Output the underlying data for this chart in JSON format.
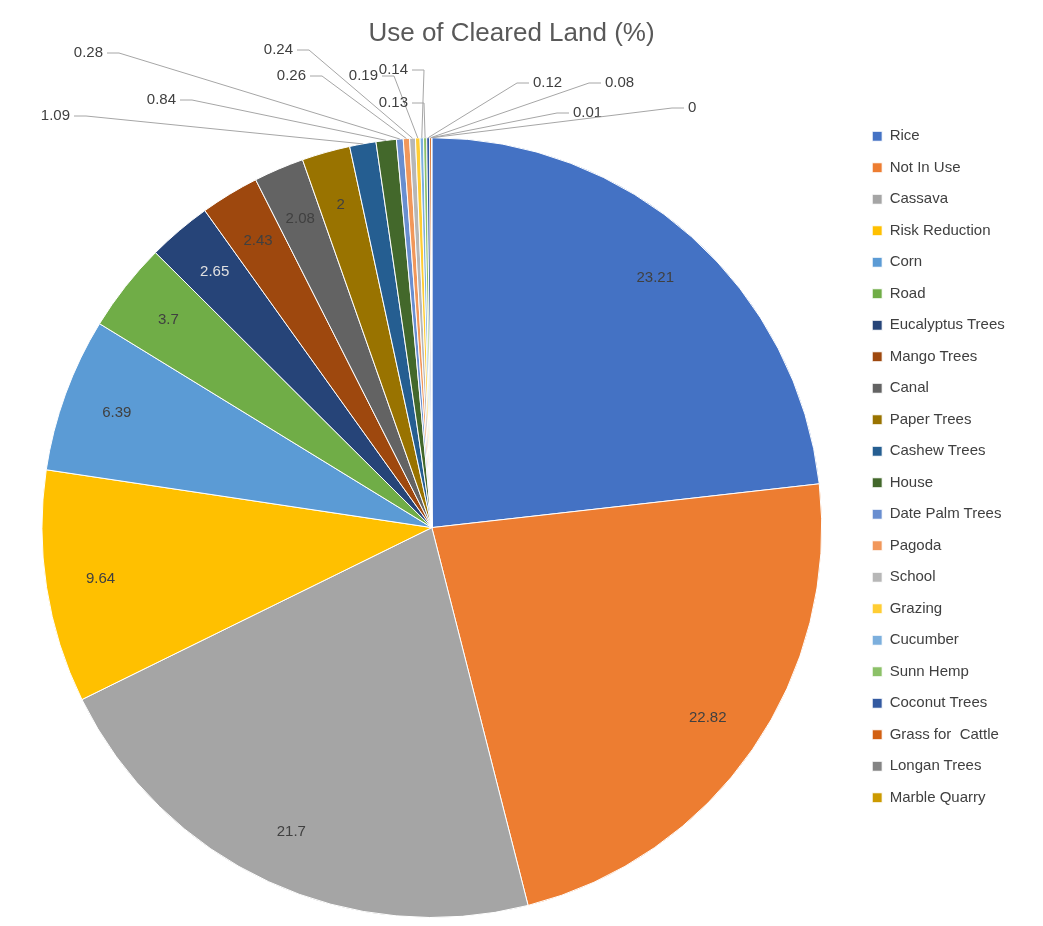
{
  "chart_data": {
    "type": "pie",
    "title": "Use of Cleared Land (%)",
    "categories": [
      "Rice",
      "Not In Use",
      "Cassava",
      "Risk Reduction",
      "Corn",
      "Road",
      "Eucalyptus Trees",
      "Mango Trees",
      "Canal",
      "Paper Trees",
      "Cashew Trees",
      "House",
      "Date Palm Trees",
      "Pagoda",
      "School",
      "Grazing",
      "Cucumber",
      "Sunn Hemp",
      "Coconut Trees",
      "Grass for  Cattle",
      "Longan Trees",
      "Marble Quarry"
    ],
    "values": [
      23.21,
      22.82,
      21.7,
      9.64,
      6.39,
      3.7,
      2.65,
      2.43,
      2.08,
      2,
      1.09,
      0.84,
      0.28,
      0.26,
      0.24,
      0.19,
      0.14,
      0.13,
      0.12,
      0.08,
      0.01,
      0
    ],
    "colors": [
      "#4472c4",
      "#ed7d31",
      "#a5a5a5",
      "#ffc000",
      "#5b9bd5",
      "#70ad47",
      "#264478",
      "#9e480e",
      "#636363",
      "#997300",
      "#255e91",
      "#43682b",
      "#698ed0",
      "#f1975a",
      "#b7b7b7",
      "#ffcd33",
      "#7cafdd",
      "#8cc168",
      "#335aa1",
      "#d26012",
      "#848484",
      "#cc9a00"
    ],
    "value_labels": [
      "23.21",
      "22.82",
      "21.7",
      "9.64",
      "6.39",
      "3.7",
      "2.65",
      "2.43",
      "2.08",
      "2",
      "1.09",
      "0.84",
      "0.28",
      "0.26",
      "0.24",
      "0.19",
      "0.14",
      "0.13",
      "0.12",
      "0.08",
      "0.01",
      "0"
    ],
    "legend": "right"
  }
}
